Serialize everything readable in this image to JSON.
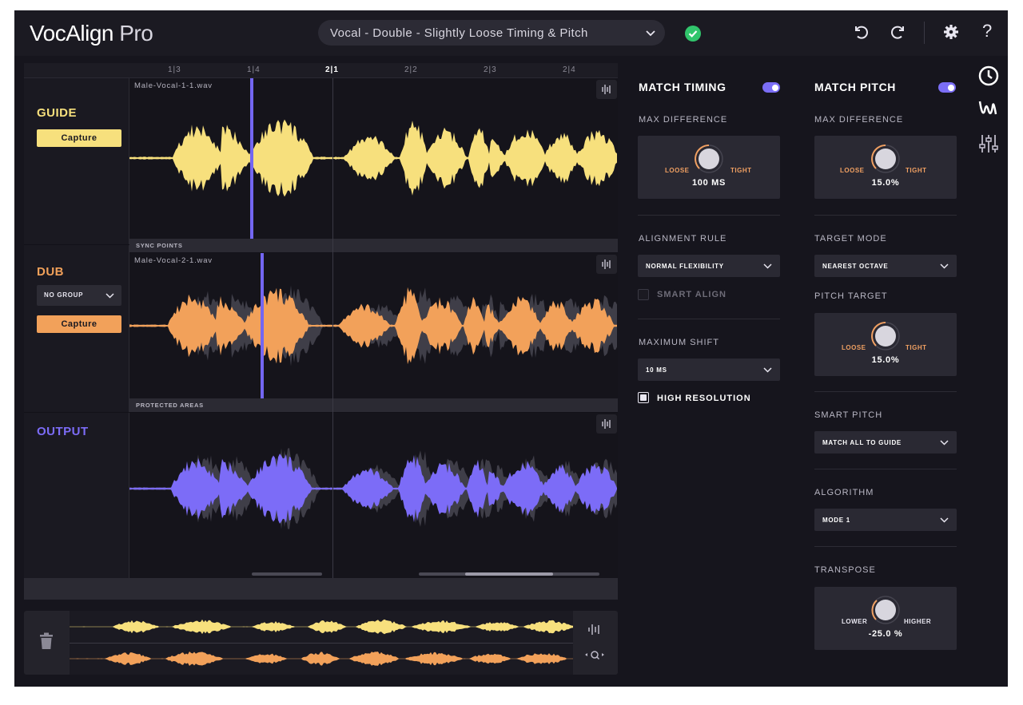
{
  "app": {
    "title_main": "VocAlign",
    "title_sub": "Pro"
  },
  "header": {
    "preset": "Vocal - Double - Slightly Loose Timing & Pitch",
    "icons": [
      "status-ok-icon",
      "undo-icon",
      "redo-icon",
      "gear-icon",
      "help-icon"
    ],
    "help_label": "?"
  },
  "ruler": {
    "marks": [
      "1|3",
      "1|4",
      "2|1",
      "2|2",
      "2|3",
      "2|4"
    ],
    "current": "2|1"
  },
  "tracks": {
    "guide": {
      "name": "GUIDE",
      "capture": "Capture",
      "file": "Male-Vocal-1-1.wav",
      "color": "#f7e07d",
      "subbar": "SYNC POINTS"
    },
    "dub": {
      "name": "DUB",
      "group": "NO GROUP",
      "capture": "Capture",
      "file": "Male-Vocal-2-1.wav",
      "color": "#f2a15a",
      "subbar": "PROTECTED AREAS"
    },
    "output": {
      "name": "OUTPUT",
      "color": "#7c6cf7"
    }
  },
  "timing": {
    "title": "MATCH TIMING",
    "enabled": true,
    "max_diff_label": "MAX DIFFERENCE",
    "knob": {
      "low": "LOOSE",
      "high": "TIGHT",
      "value": "100 MS"
    },
    "alignment_label": "ALIGNMENT RULE",
    "alignment_value": "NORMAL FLEXIBILITY",
    "smart_align": "SMART ALIGN",
    "smart_align_checked": false,
    "max_shift_label": "MAXIMUM SHIFT",
    "max_shift_value": "10 MS",
    "high_res": "HIGH RESOLUTION",
    "high_res_checked": true
  },
  "pitch": {
    "title": "MATCH PITCH",
    "enabled": true,
    "max_diff_label": "MAX DIFFERENCE",
    "knob1": {
      "low": "LOOSE",
      "high": "TIGHT",
      "value": "15.0%"
    },
    "target_mode_label": "TARGET MODE",
    "target_mode_value": "NEAREST OCTAVE",
    "pitch_target_label": "PITCH TARGET",
    "knob2": {
      "low": "LOOSE",
      "high": "TIGHT",
      "value": "15.0%"
    },
    "smart_pitch_label": "SMART PITCH",
    "smart_pitch_value": "MATCH ALL TO GUIDE",
    "algorithm_label": "ALGORITHM",
    "algorithm_value": "MODE 1",
    "transpose_label": "TRANSPOSE",
    "knob3": {
      "low": "LOWER",
      "high": "HIGHER",
      "value": "-25.0 %"
    }
  },
  "sidebar_icons": [
    "timing-clock-icon",
    "pitch-wave-icon",
    "mixer-sliders-icon"
  ],
  "overview_icons": [
    "trash-icon",
    "waveform-edit-icon",
    "zoom-icon"
  ]
}
